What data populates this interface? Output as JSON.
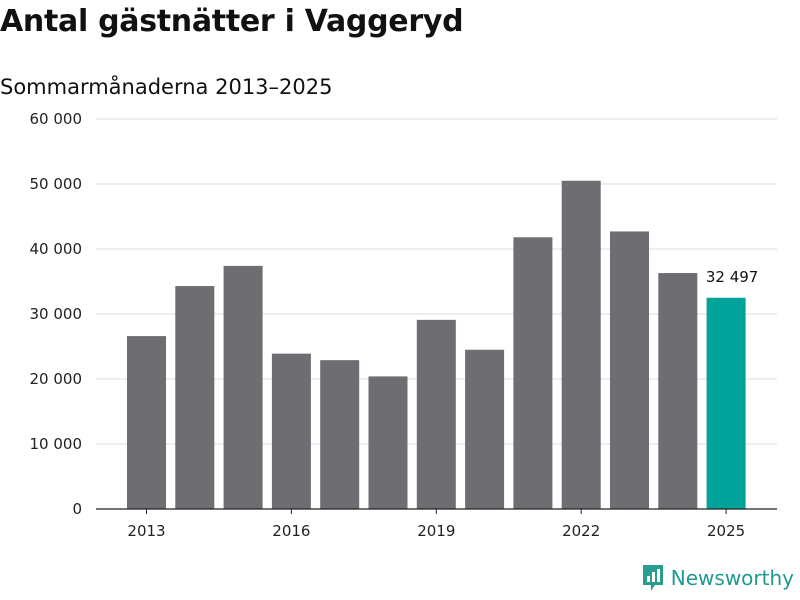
{
  "title": "Antal gästnätter i Vaggeryd",
  "subtitle": "Sommarmånaderna 2013–2025",
  "brand": {
    "name": "Newsworthy",
    "icon": "newsworthy-logo-icon"
  },
  "colors": {
    "bar": "#6d6d72",
    "highlight": "#00a39a",
    "grid": "#dddddd",
    "axis": "#222222",
    "brand": "#1f9a90"
  },
  "chart_data": {
    "type": "bar",
    "title": "Antal gästnätter i Vaggeryd",
    "subtitle": "Sommarmånaderna 2013–2025",
    "xlabel": "",
    "ylabel": "",
    "ylim": [
      0,
      60000
    ],
    "grid": true,
    "categories": [
      "2013",
      "2014",
      "2015",
      "2016",
      "2017",
      "2018",
      "2019",
      "2020",
      "2021",
      "2022",
      "2023",
      "2024",
      "2025"
    ],
    "values": [
      26600,
      34300,
      37400,
      23900,
      22900,
      20400,
      29100,
      24500,
      41800,
      50500,
      42700,
      36300,
      32497
    ],
    "x_tick_labels": [
      "2013",
      "2016",
      "2019",
      "2022",
      "2025"
    ],
    "y_ticks": [
      0,
      10000,
      20000,
      30000,
      40000,
      50000,
      60000
    ],
    "y_tick_labels": [
      "0",
      "10 000",
      "20 000",
      "30 000",
      "40 000",
      "50 000",
      "60 000"
    ],
    "highlight": {
      "category": "2025",
      "label": "32 497"
    }
  }
}
